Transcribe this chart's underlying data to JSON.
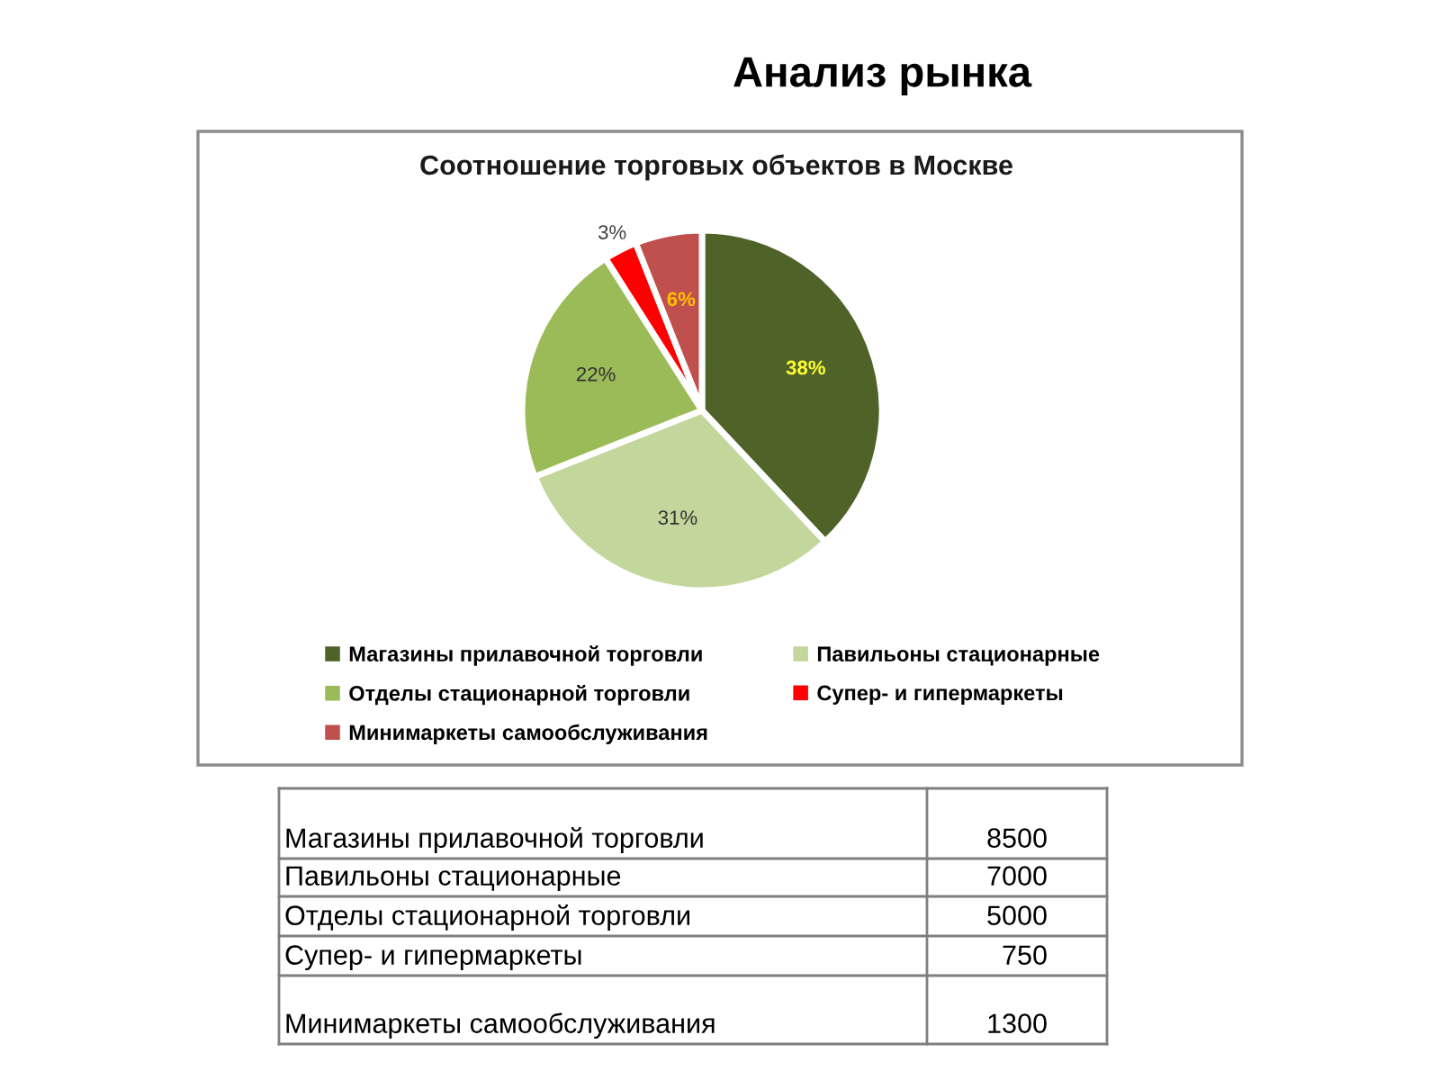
{
  "chart_data": [
    {
      "type": "pie",
      "title": "Анализ рынка",
      "subtitle": "Соотношение торговых объектов в Москве",
      "categories": [
        "Магазины прилавочной торговли",
        "Павильоны стационарные",
        "Отделы стационарной торговли",
        "Супер- и гипермаркеты",
        "Минимаркеты самообслуживания"
      ],
      "values": [
        38,
        31,
        22,
        3,
        6
      ],
      "colors": [
        "#4f6228",
        "#c3d69b",
        "#9bbb59",
        "#ff0000",
        "#c0504d"
      ],
      "value_labels": [
        "38%",
        "31%",
        "22%",
        "3%",
        "6%"
      ],
      "legend": "bottom"
    },
    {
      "type": "other",
      "categories": [
        "Магазины прилавочной торговли",
        "Павильоны стационарные",
        "Отделы стационарной торговли",
        "Супер- и гипермаркеты",
        "Минимаркеты самообслуживания"
      ],
      "values": [
        8500,
        7000,
        5000,
        750,
        1300
      ],
      "data_labels": true
    }
  ]
}
